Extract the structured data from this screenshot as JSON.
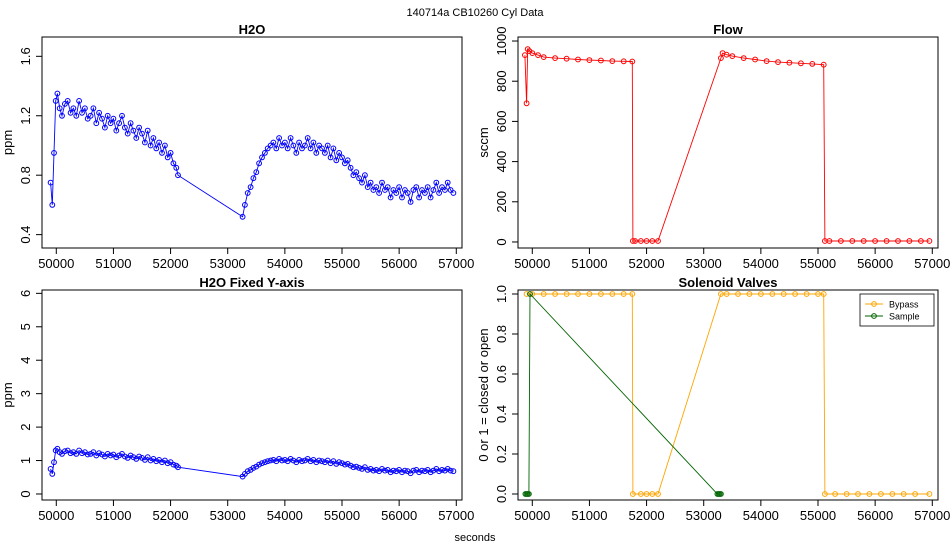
{
  "figure": {
    "title": "140714a    CB10260   Cyl Data",
    "xlabel": "seconds"
  },
  "chart_data": [
    {
      "type": "scatter",
      "title": "H2O",
      "ylabel": "ppm",
      "xlim": [
        49750,
        57100
      ],
      "ylim": [
        0.31,
        1.73
      ],
      "xticks": [
        50000,
        51000,
        52000,
        53000,
        54000,
        55000,
        56000,
        57000
      ],
      "yticks": [
        0.4,
        0.8,
        1.2,
        1.6
      ],
      "color": "#0000ff",
      "series": [
        {
          "x": [
            49900,
            49930,
            49960,
            49990,
            50020,
            50060,
            50100,
            50150,
            50200,
            50250,
            50300,
            50350,
            50400,
            50450,
            50500,
            50550,
            50600,
            50650,
            50700,
            50750,
            50800,
            50850,
            50900,
            50950,
            51000,
            51050,
            51100,
            51150,
            51200,
            51250,
            51300,
            51350,
            51400,
            51450,
            51500,
            51550,
            51600,
            51650,
            51700,
            51750,
            51800,
            51850,
            51900,
            51950,
            52000,
            52050,
            52100,
            52130,
            53260,
            53300,
            53350,
            53400,
            53450,
            53500,
            53550,
            53600,
            53650,
            53700,
            53750,
            53800,
            53850,
            53900,
            53950,
            54000,
            54050,
            54100,
            54150,
            54200,
            54250,
            54300,
            54350,
            54400,
            54450,
            54500,
            54550,
            54600,
            54650,
            54700,
            54750,
            54800,
            54850,
            54900,
            54950,
            55000,
            55050,
            55100,
            55150,
            55200,
            55250,
            55300,
            55350,
            55400,
            55450,
            55500,
            55550,
            55600,
            55650,
            55700,
            55750,
            55800,
            55850,
            55900,
            55950,
            56000,
            56050,
            56100,
            56150,
            56200,
            56250,
            56300,
            56350,
            56400,
            56450,
            56500,
            56550,
            56600,
            56650,
            56700,
            56750,
            56800,
            56850,
            56900,
            56950
          ],
          "y": [
            0.75,
            0.6,
            0.95,
            1.3,
            1.35,
            1.25,
            1.2,
            1.28,
            1.3,
            1.22,
            1.25,
            1.2,
            1.3,
            1.22,
            1.25,
            1.18,
            1.2,
            1.25,
            1.15,
            1.22,
            1.18,
            1.12,
            1.2,
            1.15,
            1.18,
            1.1,
            1.15,
            1.2,
            1.12,
            1.08,
            1.15,
            1.1,
            1.05,
            1.12,
            1.08,
            1.02,
            1.1,
            1.0,
            1.05,
            0.98,
            1.02,
            0.95,
            1.0,
            0.92,
            0.95,
            0.88,
            0.85,
            0.8,
            0.52,
            0.6,
            0.68,
            0.72,
            0.78,
            0.82,
            0.88,
            0.92,
            0.95,
            0.98,
            1.0,
            1.02,
            0.98,
            1.05,
            1.0,
            1.02,
            0.98,
            1.05,
            1.0,
            0.95,
            1.02,
            0.98,
            1.0,
            1.05,
            0.98,
            1.02,
            0.95,
            1.0,
            0.98,
            0.95,
            1.0,
            0.92,
            0.98,
            0.9,
            0.95,
            0.92,
            0.88,
            0.9,
            0.85,
            0.8,
            0.82,
            0.78,
            0.75,
            0.8,
            0.72,
            0.75,
            0.7,
            0.72,
            0.68,
            0.75,
            0.7,
            0.72,
            0.65,
            0.7,
            0.68,
            0.72,
            0.65,
            0.7,
            0.68,
            0.62,
            0.7,
            0.72,
            0.65,
            0.7,
            0.68,
            0.72,
            0.65,
            0.7,
            0.75,
            0.68,
            0.72,
            0.7,
            0.75,
            0.7,
            0.68
          ]
        }
      ]
    },
    {
      "type": "scatter",
      "title": "Flow",
      "ylabel": "sccm",
      "xlim": [
        49750,
        57100
      ],
      "ylim": [
        -30,
        1020
      ],
      "xticks": [
        50000,
        51000,
        52000,
        53000,
        54000,
        55000,
        56000,
        57000
      ],
      "yticks": [
        0,
        200,
        400,
        600,
        800,
        1000
      ],
      "color": "#ff0000",
      "series": [
        {
          "x": [
            49870,
            49900,
            49920,
            49950,
            50000,
            50100,
            50200,
            50400,
            50600,
            50800,
            51000,
            51200,
            51400,
            51600,
            51750,
            51760,
            51800,
            51900,
            52000,
            52100,
            52200,
            53300,
            53330,
            53400,
            53500,
            53700,
            53900,
            54100,
            54300,
            54500,
            54700,
            54900,
            55100,
            55120,
            55200,
            55400,
            55600,
            55800,
            56000,
            56200,
            56400,
            56600,
            56800,
            56950
          ],
          "y": [
            930,
            690,
            960,
            950,
            940,
            930,
            920,
            915,
            912,
            908,
            905,
            903,
            900,
            899,
            898,
            5,
            5,
            5,
            5,
            5,
            5,
            915,
            940,
            932,
            925,
            915,
            908,
            900,
            895,
            892,
            889,
            886,
            882,
            5,
            5,
            5,
            5,
            5,
            5,
            5,
            5,
            5,
            5,
            5
          ]
        }
      ]
    },
    {
      "type": "scatter",
      "title": "H2O Fixed Y-axis",
      "ylabel": "ppm",
      "xlim": [
        49750,
        57100
      ],
      "ylim": [
        -0.18,
        6.1
      ],
      "xticks": [
        50000,
        51000,
        52000,
        53000,
        54000,
        55000,
        56000,
        57000
      ],
      "yticks": [
        0,
        1,
        2,
        3,
        4,
        5,
        6
      ],
      "color": "#0000ff",
      "series": [
        {
          "x": [
            49900,
            49930,
            49960,
            49990,
            50020,
            50060,
            50100,
            50150,
            50200,
            50250,
            50300,
            50350,
            50400,
            50450,
            50500,
            50550,
            50600,
            50650,
            50700,
            50750,
            50800,
            50850,
            50900,
            50950,
            51000,
            51050,
            51100,
            51150,
            51200,
            51250,
            51300,
            51350,
            51400,
            51450,
            51500,
            51550,
            51600,
            51650,
            51700,
            51750,
            51800,
            51850,
            51900,
            51950,
            52000,
            52050,
            52100,
            52130,
            53260,
            53300,
            53350,
            53400,
            53450,
            53500,
            53550,
            53600,
            53650,
            53700,
            53750,
            53800,
            53850,
            53900,
            53950,
            54000,
            54050,
            54100,
            54150,
            54200,
            54250,
            54300,
            54350,
            54400,
            54450,
            54500,
            54550,
            54600,
            54650,
            54700,
            54750,
            54800,
            54850,
            54900,
            54950,
            55000,
            55050,
            55100,
            55150,
            55200,
            55250,
            55300,
            55350,
            55400,
            55450,
            55500,
            55550,
            55600,
            55650,
            55700,
            55750,
            55800,
            55850,
            55900,
            55950,
            56000,
            56050,
            56100,
            56150,
            56200,
            56250,
            56300,
            56350,
            56400,
            56450,
            56500,
            56550,
            56600,
            56650,
            56700,
            56750,
            56800,
            56850,
            56900,
            56950
          ],
          "y": [
            0.75,
            0.6,
            0.95,
            1.3,
            1.35,
            1.25,
            1.2,
            1.28,
            1.3,
            1.22,
            1.25,
            1.2,
            1.3,
            1.22,
            1.25,
            1.18,
            1.2,
            1.25,
            1.15,
            1.22,
            1.18,
            1.12,
            1.2,
            1.15,
            1.18,
            1.1,
            1.15,
            1.2,
            1.12,
            1.08,
            1.15,
            1.1,
            1.05,
            1.12,
            1.08,
            1.02,
            1.1,
            1.0,
            1.05,
            0.98,
            1.02,
            0.95,
            1.0,
            0.92,
            0.95,
            0.88,
            0.85,
            0.8,
            0.52,
            0.6,
            0.68,
            0.72,
            0.78,
            0.82,
            0.88,
            0.92,
            0.95,
            0.98,
            1.0,
            1.02,
            0.98,
            1.05,
            1.0,
            1.02,
            0.98,
            1.05,
            1.0,
            0.95,
            1.02,
            0.98,
            1.0,
            1.05,
            0.98,
            1.02,
            0.95,
            1.0,
            0.98,
            0.95,
            1.0,
            0.92,
            0.98,
            0.9,
            0.95,
            0.92,
            0.88,
            0.9,
            0.85,
            0.8,
            0.82,
            0.78,
            0.75,
            0.8,
            0.72,
            0.75,
            0.7,
            0.72,
            0.68,
            0.75,
            0.7,
            0.72,
            0.65,
            0.7,
            0.68,
            0.72,
            0.65,
            0.7,
            0.68,
            0.62,
            0.7,
            0.72,
            0.65,
            0.7,
            0.68,
            0.72,
            0.65,
            0.7,
            0.75,
            0.68,
            0.72,
            0.7,
            0.75,
            0.7,
            0.68
          ]
        }
      ]
    },
    {
      "type": "scatter",
      "title": "Solenoid Valves",
      "ylabel": "0 or 1 = closed or open",
      "xlim": [
        49750,
        57100
      ],
      "ylim": [
        -0.03,
        1.02
      ],
      "xticks": [
        50000,
        51000,
        52000,
        53000,
        54000,
        55000,
        56000,
        57000
      ],
      "yticks": [
        0.0,
        0.2,
        0.4,
        0.6,
        0.8,
        1.0
      ],
      "legend": "top-right",
      "series": [
        {
          "name": "Bypass",
          "color": "#ffa500",
          "x": [
            49900,
            50000,
            50200,
            50400,
            50600,
            50800,
            51000,
            51200,
            51400,
            51600,
            51750,
            51760,
            51900,
            52000,
            52100,
            52200,
            53300,
            53400,
            53600,
            53800,
            54000,
            54200,
            54400,
            54600,
            54800,
            55000,
            55100,
            55120,
            55300,
            55500,
            55700,
            55900,
            56100,
            56300,
            56500,
            56700,
            56950
          ],
          "y": [
            1,
            1,
            1,
            1,
            1,
            1,
            1,
            1,
            1,
            1,
            1,
            0,
            0,
            0,
            0,
            0,
            1,
            1,
            1,
            1,
            1,
            1,
            1,
            1,
            1,
            1,
            1,
            0,
            0,
            0,
            0,
            0,
            0,
            0,
            0,
            0,
            0
          ]
        },
        {
          "name": "Sample",
          "color": "#006400",
          "x": [
            49880,
            49900,
            49920,
            49940,
            49960,
            53240,
            53260,
            53280,
            53300
          ],
          "y": [
            0,
            0,
            0,
            0,
            1,
            0,
            0,
            0,
            0
          ]
        }
      ]
    }
  ]
}
